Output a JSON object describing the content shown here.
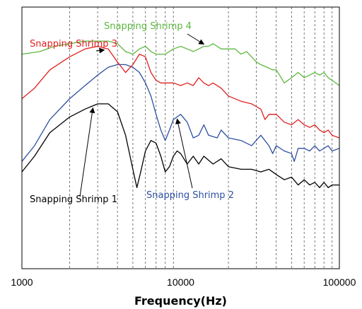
{
  "chart_data": {
    "type": "line",
    "xlabel": "Frequency(Hz)",
    "ylabel": "",
    "x_scale": "log",
    "xlim": [
      1000,
      100000
    ],
    "ylim": [
      0,
      1
    ],
    "y_tick_labels_shown": false,
    "grid": "vertical dashed lines at minor decade positions",
    "x_ticks": [
      {
        "value": 1000,
        "label": "1000"
      },
      {
        "value": 10000,
        "label": "10000"
      },
      {
        "value": 100000,
        "label": "100000"
      }
    ],
    "grid_x": [
      2000,
      3000,
      4000,
      5000,
      6000,
      7000,
      8000,
      9000,
      20000,
      30000,
      40000,
      50000,
      60000,
      70000,
      80000,
      90000
    ],
    "series": [
      {
        "name": "Snapping Shrimp 1",
        "color": "#000000",
        "points": [
          [
            1000,
            0.37
          ],
          [
            1200,
            0.43
          ],
          [
            1500,
            0.52
          ],
          [
            2000,
            0.58
          ],
          [
            2500,
            0.61
          ],
          [
            3000,
            0.63
          ],
          [
            3500,
            0.63
          ],
          [
            4000,
            0.6
          ],
          [
            4500,
            0.51
          ],
          [
            5000,
            0.38
          ],
          [
            5300,
            0.31
          ],
          [
            5600,
            0.37
          ],
          [
            6000,
            0.45
          ],
          [
            6500,
            0.49
          ],
          [
            7000,
            0.48
          ],
          [
            7500,
            0.43
          ],
          [
            8000,
            0.37
          ],
          [
            8500,
            0.39
          ],
          [
            9000,
            0.43
          ],
          [
            9500,
            0.45
          ],
          [
            10000,
            0.44
          ],
          [
            11000,
            0.4
          ],
          [
            12000,
            0.43
          ],
          [
            13000,
            0.4
          ],
          [
            14000,
            0.43
          ],
          [
            16000,
            0.4
          ],
          [
            18000,
            0.42
          ],
          [
            20000,
            0.39
          ],
          [
            24000,
            0.38
          ],
          [
            28000,
            0.38
          ],
          [
            32000,
            0.37
          ],
          [
            36000,
            0.38
          ],
          [
            40000,
            0.36
          ],
          [
            45000,
            0.34
          ],
          [
            50000,
            0.35
          ],
          [
            55000,
            0.32
          ],
          [
            60000,
            0.34
          ],
          [
            65000,
            0.32
          ],
          [
            70000,
            0.33
          ],
          [
            75000,
            0.31
          ],
          [
            80000,
            0.33
          ],
          [
            85000,
            0.31
          ],
          [
            90000,
            0.32
          ],
          [
            100000,
            0.32
          ]
        ]
      },
      {
        "name": "Snapping Shrimp 2",
        "color": "#2d4fa0",
        "points": [
          [
            1000,
            0.41
          ],
          [
            1200,
            0.47
          ],
          [
            1500,
            0.57
          ],
          [
            2000,
            0.65
          ],
          [
            2500,
            0.7
          ],
          [
            3000,
            0.74
          ],
          [
            3500,
            0.77
          ],
          [
            4000,
            0.78
          ],
          [
            4500,
            0.78
          ],
          [
            5000,
            0.77
          ],
          [
            5500,
            0.75
          ],
          [
            6000,
            0.71
          ],
          [
            6500,
            0.66
          ],
          [
            7000,
            0.59
          ],
          [
            7500,
            0.53
          ],
          [
            8000,
            0.49
          ],
          [
            8500,
            0.53
          ],
          [
            9000,
            0.57
          ],
          [
            10000,
            0.59
          ],
          [
            11000,
            0.56
          ],
          [
            12000,
            0.5
          ],
          [
            13000,
            0.51
          ],
          [
            14000,
            0.55
          ],
          [
            15000,
            0.51
          ],
          [
            17000,
            0.5
          ],
          [
            18000,
            0.53
          ],
          [
            20000,
            0.5
          ],
          [
            24000,
            0.49
          ],
          [
            28000,
            0.47
          ],
          [
            32000,
            0.51
          ],
          [
            36000,
            0.47
          ],
          [
            38000,
            0.44
          ],
          [
            40000,
            0.47
          ],
          [
            45000,
            0.45
          ],
          [
            50000,
            0.44
          ],
          [
            52000,
            0.41
          ],
          [
            55000,
            0.46
          ],
          [
            60000,
            0.46
          ],
          [
            65000,
            0.45
          ],
          [
            70000,
            0.47
          ],
          [
            75000,
            0.45
          ],
          [
            80000,
            0.46
          ],
          [
            85000,
            0.47
          ],
          [
            90000,
            0.45
          ],
          [
            100000,
            0.46
          ]
        ]
      },
      {
        "name": "Snapping Shrimp 3",
        "color": "#e02020",
        "points": [
          [
            1000,
            0.65
          ],
          [
            1200,
            0.69
          ],
          [
            1500,
            0.76
          ],
          [
            2000,
            0.81
          ],
          [
            2500,
            0.84
          ],
          [
            3000,
            0.85
          ],
          [
            3500,
            0.84
          ],
          [
            4000,
            0.79
          ],
          [
            4500,
            0.75
          ],
          [
            5000,
            0.78
          ],
          [
            5500,
            0.82
          ],
          [
            6000,
            0.81
          ],
          [
            6500,
            0.75
          ],
          [
            7000,
            0.72
          ],
          [
            7500,
            0.71
          ],
          [
            8000,
            0.71
          ],
          [
            9000,
            0.71
          ],
          [
            10000,
            0.7
          ],
          [
            11000,
            0.71
          ],
          [
            12000,
            0.7
          ],
          [
            13000,
            0.73
          ],
          [
            14000,
            0.71
          ],
          [
            15000,
            0.7
          ],
          [
            16000,
            0.71
          ],
          [
            18000,
            0.69
          ],
          [
            20000,
            0.66
          ],
          [
            24000,
            0.64
          ],
          [
            28000,
            0.63
          ],
          [
            32000,
            0.61
          ],
          [
            34000,
            0.57
          ],
          [
            36000,
            0.59
          ],
          [
            40000,
            0.59
          ],
          [
            45000,
            0.56
          ],
          [
            50000,
            0.55
          ],
          [
            55000,
            0.57
          ],
          [
            60000,
            0.55
          ],
          [
            65000,
            0.54
          ],
          [
            70000,
            0.55
          ],
          [
            75000,
            0.53
          ],
          [
            80000,
            0.52
          ],
          [
            85000,
            0.53
          ],
          [
            90000,
            0.51
          ],
          [
            100000,
            0.5
          ]
        ]
      },
      {
        "name": "Snapping Shrimp 4",
        "color": "#5cb83e",
        "points": [
          [
            1000,
            0.82
          ],
          [
            1300,
            0.83
          ],
          [
            1600,
            0.85
          ],
          [
            2000,
            0.86
          ],
          [
            2500,
            0.87
          ],
          [
            3000,
            0.87
          ],
          [
            3500,
            0.87
          ],
          [
            4000,
            0.86
          ],
          [
            4500,
            0.83
          ],
          [
            5000,
            0.82
          ],
          [
            5500,
            0.84
          ],
          [
            6000,
            0.85
          ],
          [
            6500,
            0.83
          ],
          [
            7000,
            0.82
          ],
          [
            8000,
            0.82
          ],
          [
            9000,
            0.84
          ],
          [
            10000,
            0.85
          ],
          [
            11000,
            0.84
          ],
          [
            12000,
            0.83
          ],
          [
            13000,
            0.84
          ],
          [
            14000,
            0.85
          ],
          [
            15000,
            0.85
          ],
          [
            16000,
            0.86
          ],
          [
            17000,
            0.85
          ],
          [
            18000,
            0.84
          ],
          [
            20000,
            0.84
          ],
          [
            22000,
            0.84
          ],
          [
            24000,
            0.82
          ],
          [
            26000,
            0.83
          ],
          [
            28000,
            0.81
          ],
          [
            30000,
            0.79
          ],
          [
            32000,
            0.78
          ],
          [
            35000,
            0.77
          ],
          [
            38000,
            0.76
          ],
          [
            40000,
            0.76
          ],
          [
            42000,
            0.74
          ],
          [
            45000,
            0.71
          ],
          [
            50000,
            0.73
          ],
          [
            55000,
            0.75
          ],
          [
            60000,
            0.73
          ],
          [
            65000,
            0.74
          ],
          [
            70000,
            0.75
          ],
          [
            75000,
            0.74
          ],
          [
            80000,
            0.75
          ],
          [
            85000,
            0.73
          ],
          [
            90000,
            0.72
          ],
          [
            100000,
            0.7
          ]
        ]
      }
    ],
    "annotations": [
      {
        "text": "Snapping Shrimp 1",
        "series": 0,
        "color": "#000000",
        "arrow_to_x": 2800
      },
      {
        "text": "Snapping Shrimp 2",
        "series": 1,
        "color": "#2d4fa0",
        "arrow_to_x": 9500
      },
      {
        "text": "Snapping Shrimp 3",
        "series": 2,
        "color": "#e02020",
        "arrow_to_x": 3300
      },
      {
        "text": "Snapping Shrimp 4",
        "series": 3,
        "color": "#5cb83e",
        "arrow_to_x": 14000
      }
    ]
  }
}
